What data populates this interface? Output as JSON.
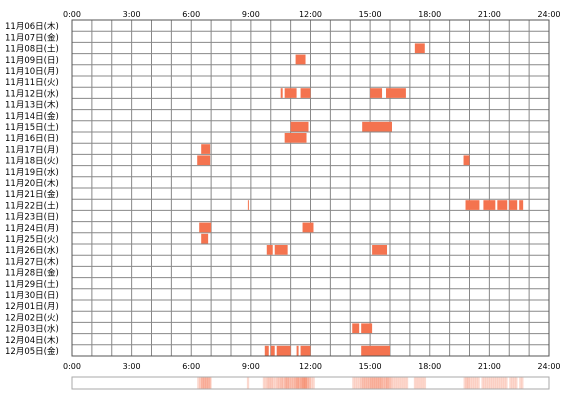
{
  "chart_data": {
    "type": "heatmap",
    "title": "",
    "xlabel": "",
    "ylabel": "",
    "x_range": [
      "0:00",
      "24:00"
    ],
    "x_unit": "hour",
    "xticks": [
      "0:00",
      "3:00",
      "6:00",
      "9:00",
      "12:00",
      "15:00",
      "18:00",
      "21:00",
      "24:00"
    ],
    "rows": [
      {
        "label": "11月06日(木)",
        "intervals": []
      },
      {
        "label": "11月07日(金)",
        "intervals": []
      },
      {
        "label": "11月08日(土)",
        "intervals": [
          [
            17.25,
            17.75
          ]
        ]
      },
      {
        "label": "11月09日(日)",
        "intervals": [
          [
            11.25,
            11.75
          ]
        ]
      },
      {
        "label": "11月10日(月)",
        "intervals": []
      },
      {
        "label": "11月11日(火)",
        "intervals": []
      },
      {
        "label": "11月12日(水)",
        "intervals": [
          [
            10.5,
            10.6
          ],
          [
            10.7,
            11.3
          ],
          [
            11.5,
            12.0
          ],
          [
            15.0,
            15.6
          ],
          [
            15.8,
            16.8
          ]
        ]
      },
      {
        "label": "11月13日(木)",
        "intervals": []
      },
      {
        "label": "11月14日(金)",
        "intervals": []
      },
      {
        "label": "11月15日(土)",
        "intervals": [
          [
            11.0,
            11.9
          ],
          [
            14.6,
            16.1
          ]
        ]
      },
      {
        "label": "11月16日(日)",
        "intervals": [
          [
            10.7,
            11.8
          ]
        ]
      },
      {
        "label": "11月17日(月)",
        "intervals": [
          [
            6.5,
            6.95
          ]
        ]
      },
      {
        "label": "11月18日(火)",
        "intervals": [
          [
            6.3,
            6.95
          ],
          [
            19.7,
            20.0
          ]
        ]
      },
      {
        "label": "11月19日(水)",
        "intervals": []
      },
      {
        "label": "11月20日(木)",
        "intervals": []
      },
      {
        "label": "11月21日(金)",
        "intervals": []
      },
      {
        "label": "11月22日(土)",
        "intervals": [
          [
            8.85,
            8.9
          ],
          [
            19.8,
            20.5
          ],
          [
            20.7,
            21.3
          ],
          [
            21.4,
            21.9
          ],
          [
            22.0,
            22.4
          ],
          [
            22.5,
            22.7
          ]
        ]
      },
      {
        "label": "11月23日(日)",
        "intervals": []
      },
      {
        "label": "11月24日(月)",
        "intervals": [
          [
            6.4,
            7.0
          ],
          [
            11.6,
            12.15
          ]
        ]
      },
      {
        "label": "11月25日(火)",
        "intervals": [
          [
            6.5,
            6.85
          ]
        ]
      },
      {
        "label": "11月26日(水)",
        "intervals": [
          [
            9.8,
            10.1
          ],
          [
            10.2,
            10.85
          ],
          [
            15.1,
            15.85
          ]
        ]
      },
      {
        "label": "11月27日(木)",
        "intervals": []
      },
      {
        "label": "11月28日(金)",
        "intervals": []
      },
      {
        "label": "11月29日(土)",
        "intervals": []
      },
      {
        "label": "11月30日(日)",
        "intervals": []
      },
      {
        "label": "12月01日(月)",
        "intervals": []
      },
      {
        "label": "12月02日(火)",
        "intervals": []
      },
      {
        "label": "12月03日(水)",
        "intervals": [
          [
            14.1,
            14.45
          ],
          [
            14.55,
            15.1
          ]
        ]
      },
      {
        "label": "12月04日(木)",
        "intervals": []
      },
      {
        "label": "12月05日(金)",
        "intervals": [
          [
            9.7,
            9.9
          ],
          [
            10.0,
            10.2
          ],
          [
            10.3,
            11.0
          ],
          [
            11.3,
            11.4
          ],
          [
            11.5,
            12.0
          ],
          [
            14.55,
            16.0
          ]
        ]
      }
    ],
    "summary_strip": "24-hour density strip aggregating all days",
    "grid": true,
    "colors": {
      "bar": "#f4734f",
      "grid": "#888888",
      "frame": "#555555",
      "strip_base": "#ffffff"
    }
  }
}
